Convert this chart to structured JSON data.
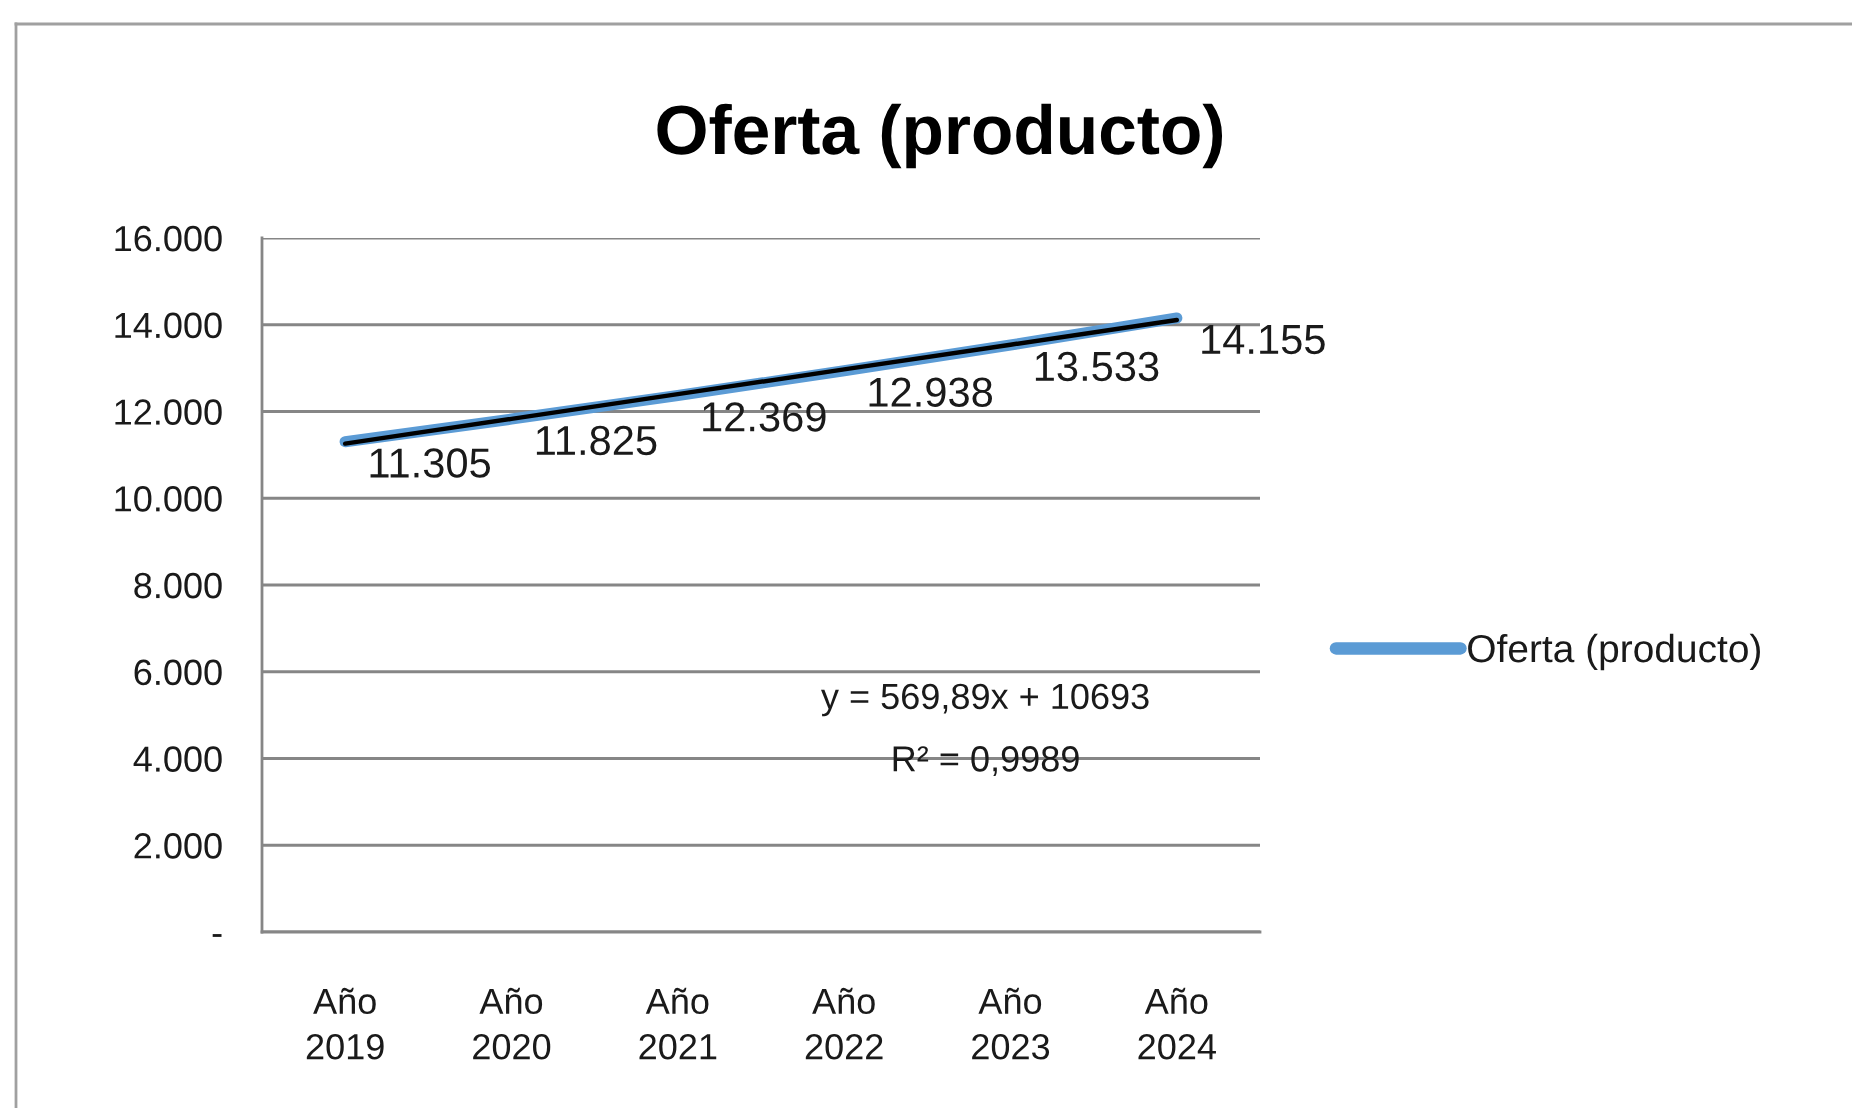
{
  "chart_data": {
    "type": "line",
    "title": "Oferta (producto)",
    "categories": [
      "Año\n2019",
      "Año\n2020",
      "Año\n2021",
      "Año\n2022",
      "Año\n2023",
      "Año\n2024"
    ],
    "series": [
      {
        "name": "Oferta (producto)",
        "color": "#5b9bd5",
        "values": [
          11305,
          11825,
          12369,
          12938,
          13533,
          14155
        ],
        "value_labels": [
          "11.305",
          "11.825",
          "12.369",
          "12.938",
          "13.533",
          "14.155"
        ]
      },
      {
        "color": "#000000",
        "values": [
          11260,
          11830,
          12400,
          12970,
          13540,
          14110
        ]
      }
    ],
    "ylim": [
      0,
      16000
    ],
    "yticks": [
      {
        "value": 0,
        "label": "-"
      },
      {
        "value": 2000,
        "label": "2.000"
      },
      {
        "value": 4000,
        "label": "4.000"
      },
      {
        "value": 6000,
        "label": "6.000"
      },
      {
        "value": 8000,
        "label": "8.000"
      },
      {
        "value": 10000,
        "label": "10.000"
      },
      {
        "value": 12000,
        "label": "12.000"
      },
      {
        "value": 14000,
        "label": "14.000"
      },
      {
        "value": 16000,
        "label": "16.000"
      }
    ],
    "grid": "y",
    "legend": "right",
    "annotations": [
      "y = 569,89x + 10693",
      "R² = 0,9989"
    ]
  }
}
